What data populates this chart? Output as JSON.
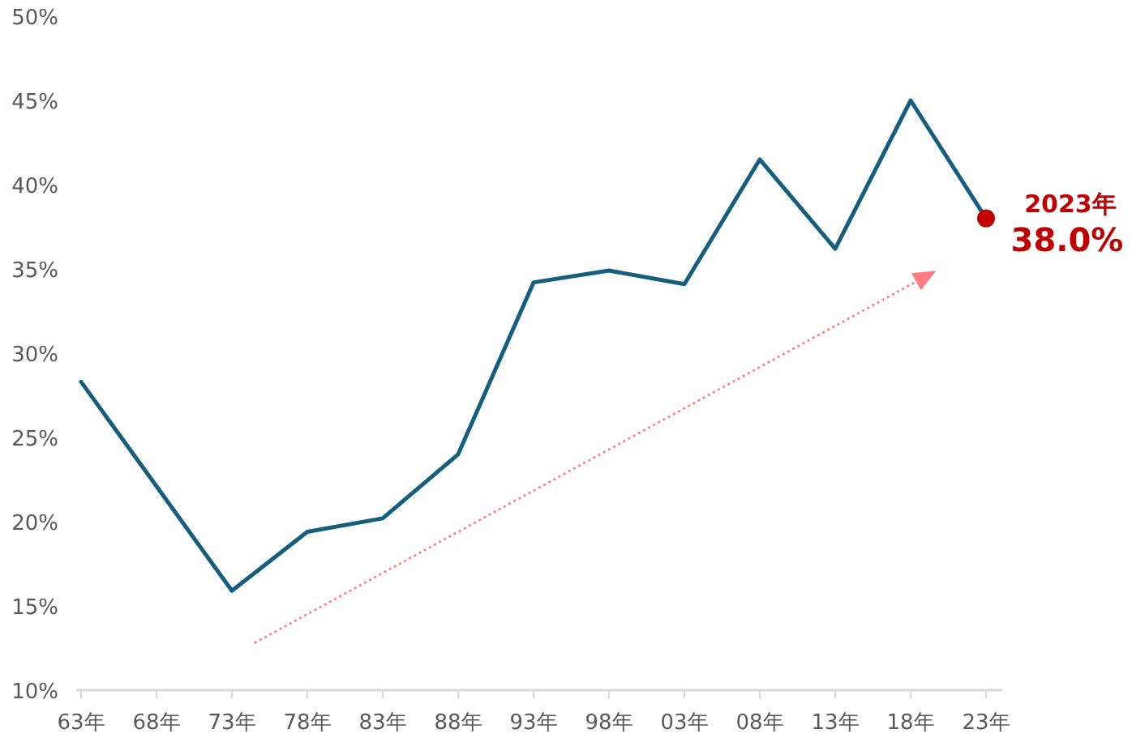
{
  "chart_data": {
    "type": "line",
    "categories": [
      "63年",
      "68年",
      "73年",
      "78年",
      "83年",
      "88年",
      "93年",
      "98年",
      "03年",
      "08年",
      "13年",
      "18年",
      "23年"
    ],
    "series": [
      {
        "color": "#155e7e",
        "values": [
          28.3,
          22.1,
          15.9,
          19.4,
          20.2,
          24.0,
          34.2,
          34.9,
          34.1,
          41.5,
          36.2,
          45.0,
          38.0
        ]
      },
      {
        "type": "scatter",
        "marker": "circle",
        "color": "#c00000",
        "x": [
          "23年"
        ],
        "values": [
          38.0
        ]
      }
    ],
    "ylim": [
      10,
      50
    ],
    "yticks": [
      {
        "value": 10,
        "label": "10%"
      },
      {
        "value": 15,
        "label": "15%"
      },
      {
        "value": 20,
        "label": "20%"
      },
      {
        "value": 25,
        "label": "25%"
      },
      {
        "value": 30,
        "label": "30%"
      },
      {
        "value": 35,
        "label": "35%"
      },
      {
        "value": 40,
        "label": "40%"
      },
      {
        "value": 45,
        "label": "45%"
      },
      {
        "value": 50,
        "label": "50%"
      }
    ],
    "grid": false,
    "line_style": "solid",
    "annotations": [
      {
        "text": "2023年",
        "x": "23年",
        "y": 38.0
      },
      {
        "text": "38.0%",
        "x": "23年",
        "y": 38.0
      }
    ]
  }
}
